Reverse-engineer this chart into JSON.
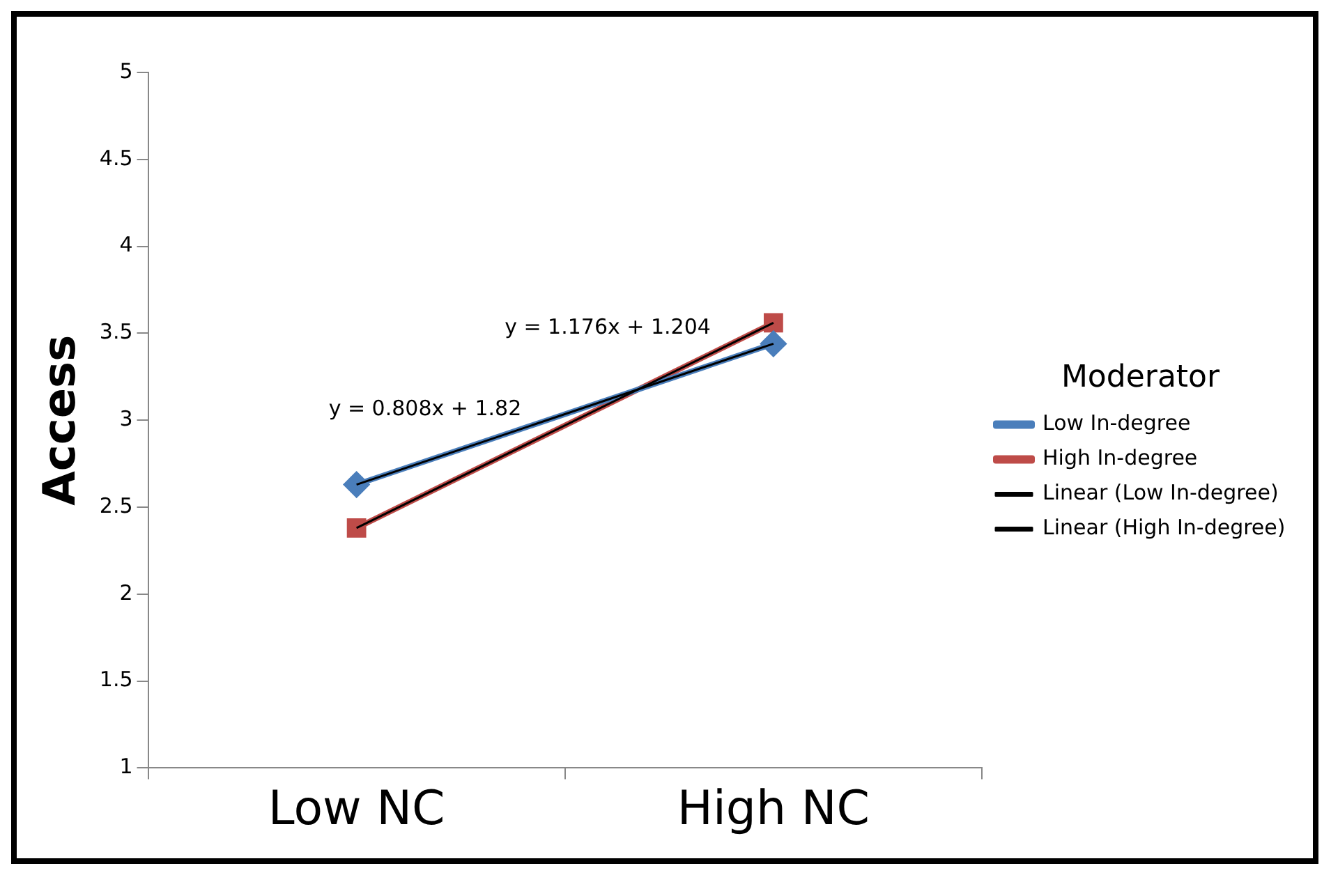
{
  "chart_data": {
    "type": "line",
    "ylabel": "Access",
    "legend_title": "Moderator",
    "legend": "right",
    "grid": false,
    "categories": [
      "Low NC",
      "High NC"
    ],
    "ylim": [
      1,
      5
    ],
    "yticks": [
      1,
      1.5,
      2,
      2.5,
      3,
      3.5,
      4,
      4.5,
      5
    ],
    "series": [
      {
        "name": "Low In-degree",
        "color": "#4a7ebb",
        "values": [
          2.63,
          3.44
        ],
        "marker": "diamond"
      },
      {
        "name": "High In-degree",
        "color": "#be4b48",
        "values": [
          2.38,
          3.56
        ],
        "marker": "square"
      },
      {
        "name": "Linear (Low In-degree)",
        "color": "#000000",
        "values": [
          2.63,
          3.44
        ],
        "marker": "none",
        "line_style": "solid"
      },
      {
        "name": "Linear (High In-degree)",
        "color": "#000000",
        "values": [
          2.38,
          3.56
        ],
        "marker": "none",
        "line_style": "solid"
      }
    ],
    "annotations": [
      "y = 0.808x + 1.82",
      "y = 1.176x + 1.204"
    ]
  }
}
